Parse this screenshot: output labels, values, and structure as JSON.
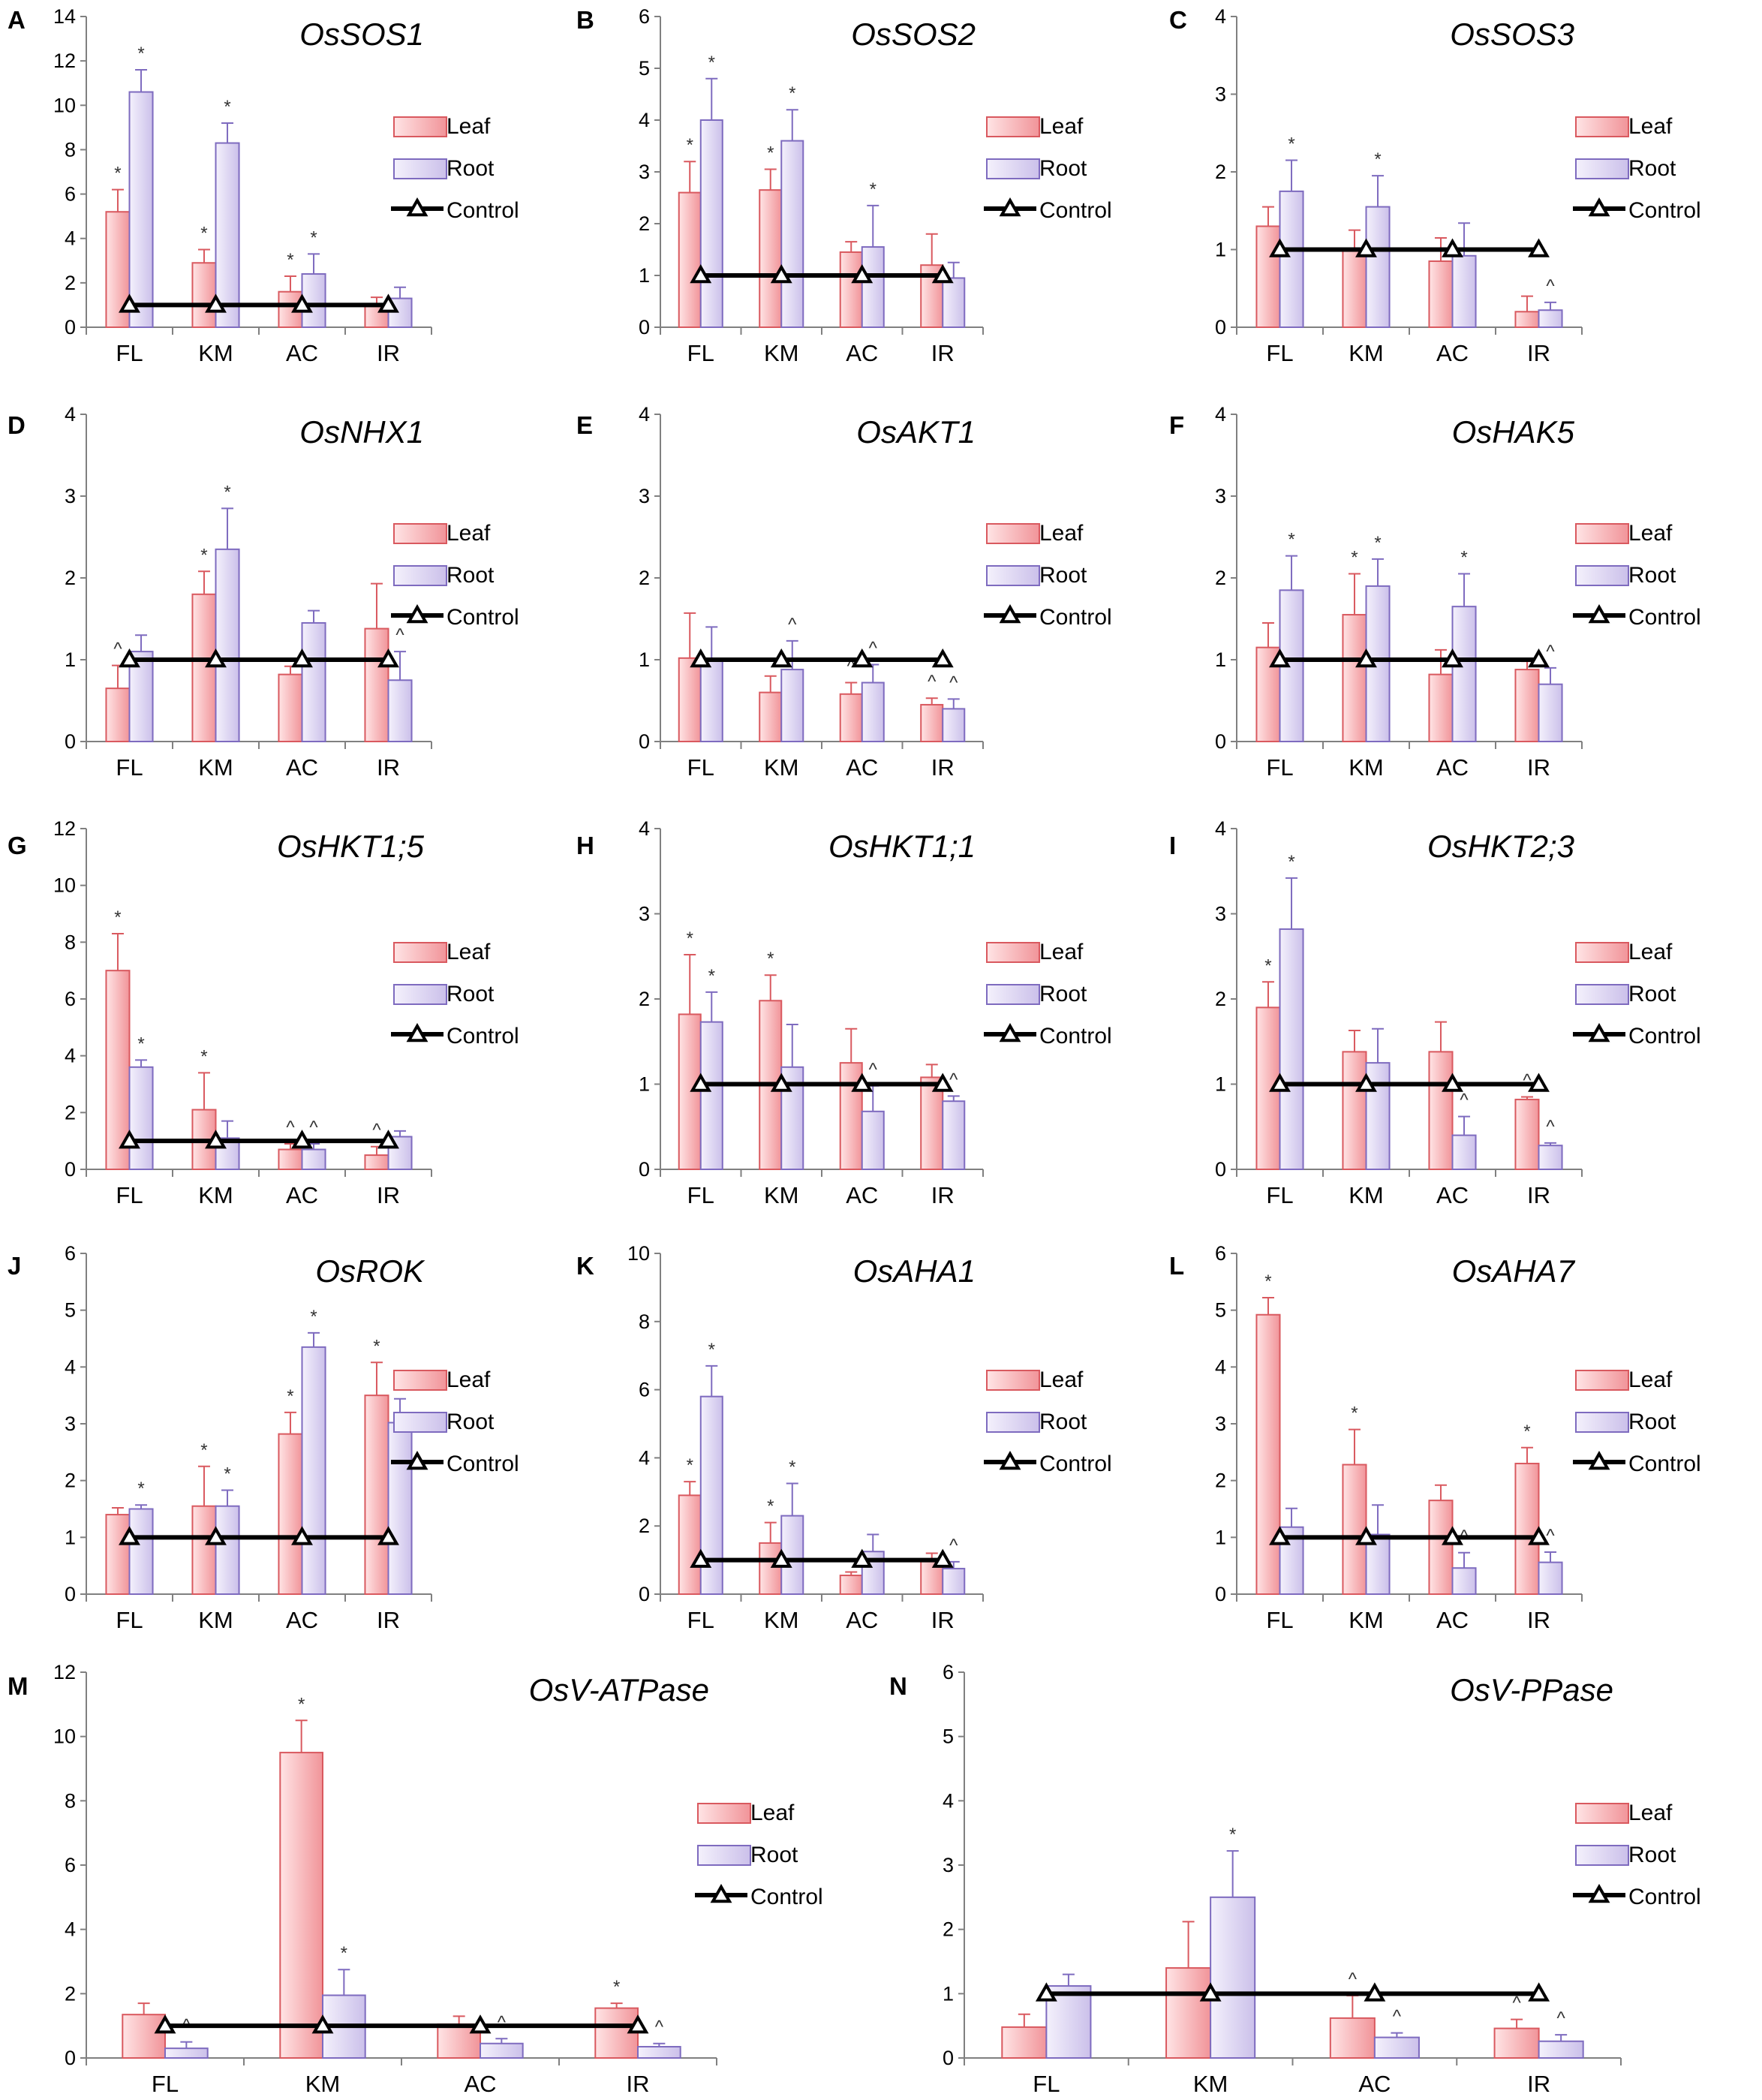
{
  "colors": {
    "leaf_fill": "#f4a0a4",
    "leaf_edge": "#d9595f",
    "root_fill": "#d8d0f0",
    "root_edge": "#7e6bbf",
    "control": "#000000"
  },
  "legend": {
    "leaf": "Leaf",
    "root": "Root",
    "control": "Control"
  },
  "chart_data": [
    {
      "letter": "A",
      "title": "OsSOS1",
      "type": "bar",
      "categories": [
        "FL",
        "KM",
        "AC",
        "IR"
      ],
      "ylim": [
        0,
        14
      ],
      "yticks": [
        0,
        2,
        4,
        6,
        8,
        10,
        12,
        14
      ],
      "series": [
        {
          "name": "Leaf",
          "values": [
            5.2,
            2.9,
            1.6,
            0.95
          ],
          "errors": [
            1.0,
            0.6,
            0.7,
            0.4
          ],
          "marks": [
            "*",
            "*",
            "*",
            ""
          ]
        },
        {
          "name": "Root",
          "values": [
            10.6,
            8.3,
            2.4,
            1.3
          ],
          "errors": [
            1.0,
            0.9,
            0.9,
            0.5
          ],
          "marks": [
            "*",
            "*",
            "*",
            ""
          ]
        },
        {
          "name": "Control",
          "values": [
            1,
            1,
            1,
            1
          ]
        }
      ]
    },
    {
      "letter": "B",
      "title": "OsSOS2",
      "type": "bar",
      "categories": [
        "FL",
        "KM",
        "AC",
        "IR"
      ],
      "ylim": [
        0,
        6
      ],
      "yticks": [
        0,
        1,
        2,
        3,
        4,
        5,
        6
      ],
      "series": [
        {
          "name": "Leaf",
          "values": [
            2.6,
            2.65,
            1.45,
            1.2
          ],
          "errors": [
            0.6,
            0.4,
            0.2,
            0.6
          ],
          "marks": [
            "*",
            "*",
            "",
            ""
          ]
        },
        {
          "name": "Root",
          "values": [
            4.0,
            3.6,
            1.55,
            0.95
          ],
          "errors": [
            0.8,
            0.6,
            0.8,
            0.3
          ],
          "marks": [
            "*",
            "*",
            "*",
            ""
          ]
        },
        {
          "name": "Control",
          "values": [
            1,
            1,
            1,
            1
          ]
        }
      ]
    },
    {
      "letter": "C",
      "title": "OsSOS3",
      "type": "bar",
      "categories": [
        "FL",
        "KM",
        "AC",
        "IR"
      ],
      "ylim": [
        0,
        4
      ],
      "yticks": [
        0,
        1,
        2,
        3,
        4
      ],
      "series": [
        {
          "name": "Leaf",
          "values": [
            1.3,
            1.0,
            0.85,
            0.2
          ],
          "errors": [
            0.25,
            0.25,
            0.3,
            0.2
          ],
          "marks": [
            "",
            "",
            "",
            ""
          ]
        },
        {
          "name": "Root",
          "values": [
            1.75,
            1.55,
            0.92,
            0.22
          ],
          "errors": [
            0.4,
            0.4,
            0.42,
            0.1
          ],
          "marks": [
            "*",
            "*",
            "",
            "^"
          ]
        },
        {
          "name": "Control",
          "values": [
            1,
            1,
            1,
            1
          ]
        }
      ]
    },
    {
      "letter": "D",
      "title": "OsNHX1",
      "type": "bar",
      "categories": [
        "FL",
        "KM",
        "AC",
        "IR"
      ],
      "ylim": [
        0,
        4
      ],
      "yticks": [
        0,
        1,
        2,
        3,
        4
      ],
      "series": [
        {
          "name": "Leaf",
          "values": [
            0.65,
            1.8,
            0.82,
            1.38
          ],
          "errors": [
            0.28,
            0.28,
            0.1,
            0.55
          ],
          "marks": [
            "^",
            "*",
            "",
            ""
          ]
        },
        {
          "name": "Root",
          "values": [
            1.1,
            2.35,
            1.45,
            0.75
          ],
          "errors": [
            0.2,
            0.5,
            0.15,
            0.35
          ],
          "marks": [
            "",
            "*",
            "",
            "^"
          ]
        },
        {
          "name": "Control",
          "values": [
            1,
            1,
            1,
            1
          ]
        }
      ]
    },
    {
      "letter": "E",
      "title": "OsAKT1",
      "type": "bar",
      "categories": [
        "FL",
        "KM",
        "AC",
        "IR"
      ],
      "ylim": [
        0,
        4
      ],
      "yticks": [
        0,
        1,
        2,
        3,
        4
      ],
      "series": [
        {
          "name": "Leaf",
          "values": [
            1.02,
            0.6,
            0.58,
            0.45
          ],
          "errors": [
            0.55,
            0.2,
            0.14,
            0.08
          ],
          "marks": [
            "",
            "",
            "^",
            "^"
          ]
        },
        {
          "name": "Root",
          "values": [
            1.0,
            0.88,
            0.72,
            0.4
          ],
          "errors": [
            0.4,
            0.35,
            0.22,
            0.12
          ],
          "marks": [
            "",
            "^",
            "^",
            "^"
          ]
        },
        {
          "name": "Control",
          "values": [
            1,
            1,
            1,
            1
          ]
        }
      ]
    },
    {
      "letter": "F",
      "title": "OsHAK5",
      "type": "bar",
      "categories": [
        "FL",
        "KM",
        "AC",
        "IR"
      ],
      "ylim": [
        0,
        4
      ],
      "yticks": [
        0,
        1,
        2,
        3,
        4
      ],
      "series": [
        {
          "name": "Leaf",
          "values": [
            1.15,
            1.55,
            0.82,
            0.88
          ],
          "errors": [
            0.3,
            0.5,
            0.3,
            0.1
          ],
          "marks": [
            "",
            "*",
            "",
            ""
          ]
        },
        {
          "name": "Root",
          "values": [
            1.85,
            1.9,
            1.65,
            0.7
          ],
          "errors": [
            0.42,
            0.33,
            0.4,
            0.2
          ],
          "marks": [
            "*",
            "*",
            "*",
            "^"
          ]
        },
        {
          "name": "Control",
          "values": [
            1,
            1,
            1,
            1
          ]
        }
      ]
    },
    {
      "letter": "G",
      "title": "OsHKT1;5",
      "type": "bar",
      "categories": [
        "FL",
        "KM",
        "AC",
        "IR"
      ],
      "ylim": [
        0,
        12
      ],
      "yticks": [
        0,
        2,
        4,
        6,
        8,
        10,
        12
      ],
      "series": [
        {
          "name": "Leaf",
          "values": [
            7.0,
            2.1,
            0.7,
            0.5
          ],
          "errors": [
            1.3,
            1.3,
            0.2,
            0.3
          ],
          "marks": [
            "*",
            "*",
            "^",
            "^"
          ]
        },
        {
          "name": "Root",
          "values": [
            3.6,
            1.1,
            0.7,
            1.15
          ],
          "errors": [
            0.25,
            0.6,
            0.2,
            0.2
          ],
          "marks": [
            "*",
            "",
            "^",
            ""
          ]
        },
        {
          "name": "Control",
          "values": [
            1,
            1,
            1,
            1
          ]
        }
      ]
    },
    {
      "letter": "H",
      "title": "OsHKT1;1",
      "type": "bar",
      "categories": [
        "FL",
        "KM",
        "AC",
        "IR"
      ],
      "ylim": [
        0,
        4
      ],
      "yticks": [
        0,
        1,
        2,
        3,
        4
      ],
      "series": [
        {
          "name": "Leaf",
          "values": [
            1.82,
            1.98,
            1.25,
            1.08
          ],
          "errors": [
            0.7,
            0.3,
            0.4,
            0.15
          ],
          "marks": [
            "*",
            "*",
            "",
            ""
          ]
        },
        {
          "name": "Root",
          "values": [
            1.73,
            1.2,
            0.68,
            0.8
          ],
          "errors": [
            0.35,
            0.5,
            0.3,
            0.06
          ],
          "marks": [
            "*",
            "",
            "^",
            "^"
          ]
        },
        {
          "name": "Control",
          "values": [
            1,
            1,
            1,
            1
          ]
        }
      ]
    },
    {
      "letter": "I",
      "title": "OsHKT2;3",
      "type": "bar",
      "categories": [
        "FL",
        "KM",
        "AC",
        "IR"
      ],
      "ylim": [
        0,
        4
      ],
      "yticks": [
        0,
        1,
        2,
        3,
        4
      ],
      "series": [
        {
          "name": "Leaf",
          "values": [
            1.9,
            1.38,
            1.38,
            0.82
          ],
          "errors": [
            0.3,
            0.25,
            0.35,
            0.03
          ],
          "marks": [
            "*",
            "",
            "",
            "^"
          ]
        },
        {
          "name": "Root",
          "values": [
            2.82,
            1.25,
            0.4,
            0.28
          ],
          "errors": [
            0.6,
            0.4,
            0.22,
            0.03
          ],
          "marks": [
            "*",
            "",
            "^",
            "^"
          ]
        },
        {
          "name": "Control",
          "values": [
            1,
            1,
            1,
            1
          ]
        }
      ]
    },
    {
      "letter": "J",
      "title": "OsROK",
      "type": "bar",
      "categories": [
        "FL",
        "KM",
        "AC",
        "IR"
      ],
      "ylim": [
        0,
        6
      ],
      "yticks": [
        0,
        1,
        2,
        3,
        4,
        5,
        6
      ],
      "series": [
        {
          "name": "Leaf",
          "values": [
            1.4,
            1.55,
            2.82,
            3.5
          ],
          "errors": [
            0.12,
            0.7,
            0.38,
            0.58
          ],
          "marks": [
            "",
            "*",
            "*",
            "*"
          ]
        },
        {
          "name": "Root",
          "values": [
            1.5,
            1.55,
            4.35,
            3.02
          ],
          "errors": [
            0.07,
            0.28,
            0.25,
            0.42
          ],
          "marks": [
            "*",
            "*",
            "*",
            "*"
          ]
        },
        {
          "name": "Control",
          "values": [
            1,
            1,
            1,
            1
          ]
        }
      ]
    },
    {
      "letter": "K",
      "title": "OsAHA1",
      "type": "bar",
      "categories": [
        "FL",
        "KM",
        "AC",
        "IR"
      ],
      "ylim": [
        0,
        10
      ],
      "yticks": [
        0,
        2,
        4,
        6,
        8,
        10
      ],
      "series": [
        {
          "name": "Leaf",
          "values": [
            2.9,
            1.5,
            0.55,
            1.0
          ],
          "errors": [
            0.4,
            0.6,
            0.1,
            0.2
          ],
          "marks": [
            "*",
            "*",
            "",
            ""
          ]
        },
        {
          "name": "Root",
          "values": [
            5.8,
            2.3,
            1.25,
            0.75
          ],
          "errors": [
            0.9,
            0.95,
            0.5,
            0.2
          ],
          "marks": [
            "*",
            "*",
            "",
            "^"
          ]
        },
        {
          "name": "Control",
          "values": [
            1,
            1,
            1,
            1
          ]
        }
      ]
    },
    {
      "letter": "L",
      "title": "OsAHA7",
      "type": "bar",
      "categories": [
        "FL",
        "KM",
        "AC",
        "IR"
      ],
      "ylim": [
        0,
        6
      ],
      "yticks": [
        0,
        1,
        2,
        3,
        4,
        5,
        6
      ],
      "series": [
        {
          "name": "Leaf",
          "values": [
            4.92,
            2.28,
            1.65,
            2.3
          ],
          "errors": [
            0.3,
            0.62,
            0.27,
            0.28
          ],
          "marks": [
            "*",
            "*",
            "",
            "*"
          ]
        },
        {
          "name": "Root",
          "values": [
            1.18,
            1.05,
            0.46,
            0.56
          ],
          "errors": [
            0.33,
            0.52,
            0.27,
            0.18
          ],
          "marks": [
            "",
            "",
            "^",
            "^"
          ]
        },
        {
          "name": "Control",
          "values": [
            1,
            1,
            1,
            1
          ]
        }
      ]
    },
    {
      "letter": "M",
      "title": "OsV-ATPase",
      "type": "bar",
      "categories": [
        "FL",
        "KM",
        "AC",
        "IR"
      ],
      "ylim": [
        0,
        12
      ],
      "yticks": [
        0,
        2,
        4,
        6,
        8,
        10,
        12
      ],
      "series": [
        {
          "name": "Leaf",
          "values": [
            1.35,
            9.5,
            1.05,
            1.55
          ],
          "errors": [
            0.35,
            1.0,
            0.25,
            0.15
          ],
          "marks": [
            "",
            "*",
            "",
            "*"
          ]
        },
        {
          "name": "Root",
          "values": [
            0.3,
            1.95,
            0.45,
            0.35
          ],
          "errors": [
            0.2,
            0.8,
            0.15,
            0.1
          ],
          "marks": [
            "^",
            "*",
            "^",
            "^"
          ]
        },
        {
          "name": "Control",
          "values": [
            1,
            1,
            1,
            1
          ]
        }
      ]
    },
    {
      "letter": "N",
      "title": "OsV-PPase",
      "type": "bar",
      "categories": [
        "FL",
        "KM",
        "AC",
        "IR"
      ],
      "ylim": [
        0,
        6
      ],
      "yticks": [
        0,
        1,
        2,
        3,
        4,
        5,
        6
      ],
      "series": [
        {
          "name": "Leaf",
          "values": [
            0.48,
            1.4,
            0.62,
            0.46
          ],
          "errors": [
            0.2,
            0.72,
            0.35,
            0.14
          ],
          "marks": [
            "",
            "",
            "^",
            "^"
          ]
        },
        {
          "name": "Root",
          "values": [
            1.12,
            2.5,
            0.32,
            0.26
          ],
          "errors": [
            0.18,
            0.72,
            0.07,
            0.1
          ],
          "marks": [
            "",
            "*",
            "^",
            "^"
          ]
        },
        {
          "name": "Control",
          "values": [
            1,
            1,
            1,
            1
          ]
        }
      ]
    }
  ]
}
